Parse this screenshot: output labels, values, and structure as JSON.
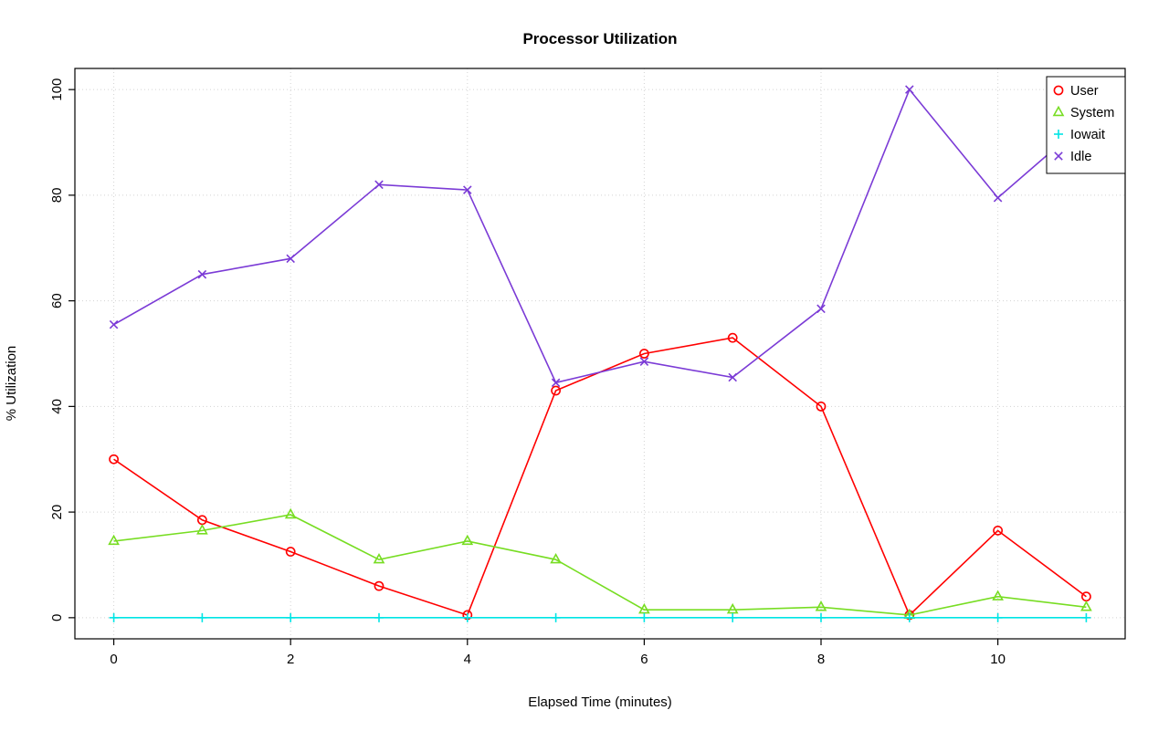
{
  "chart_data": {
    "type": "line",
    "title": "Processor Utilization",
    "xlabel": "Elapsed Time (minutes)",
    "ylabel": "% Utilization",
    "x": [
      0,
      1,
      2,
      3,
      4,
      5,
      6,
      7,
      8,
      9,
      10,
      11
    ],
    "xlim": [
      0,
      11
    ],
    "ylim": [
      0,
      100
    ],
    "xticks": [
      0,
      2,
      4,
      6,
      8,
      10
    ],
    "yticks": [
      0,
      20,
      40,
      60,
      80,
      100
    ],
    "grid": true,
    "grid_style": "dotted",
    "grid_color": "#d3d3d3",
    "legend_position": "top-right",
    "series": [
      {
        "name": "User",
        "marker": "circle",
        "color": "#ff0000",
        "values": [
          30,
          18.5,
          12.5,
          6,
          0.5,
          43,
          50,
          53,
          40,
          0.5,
          16.5,
          4
        ]
      },
      {
        "name": "System",
        "marker": "triangle",
        "color": "#77dd22",
        "values": [
          14.5,
          16.5,
          19.5,
          11,
          14.5,
          11,
          1.5,
          1.5,
          2,
          0.5,
          4,
          2
        ]
      },
      {
        "name": "Iowait",
        "marker": "plus",
        "color": "#00e5e5",
        "values": [
          0,
          0,
          0,
          0,
          0,
          0,
          0,
          0,
          0,
          0,
          0,
          0
        ]
      },
      {
        "name": "Idle",
        "marker": "x",
        "color": "#7b3bd6",
        "values": [
          55.5,
          65,
          68,
          82,
          81,
          44.5,
          48.5,
          45.5,
          58.5,
          100,
          79.5,
          94
        ]
      }
    ]
  }
}
